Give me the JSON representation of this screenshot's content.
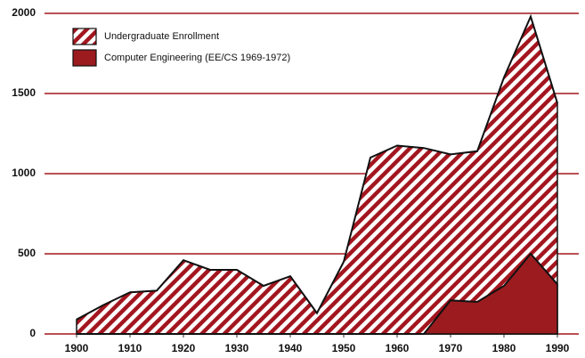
{
  "chart_data": {
    "type": "area",
    "x": [
      1900,
      1905,
      1910,
      1915,
      1920,
      1925,
      1930,
      1935,
      1940,
      1945,
      1950,
      1955,
      1960,
      1965,
      1970,
      1975,
      1980,
      1985,
      1990
    ],
    "series": [
      {
        "name": "Undergraduate Enrollment",
        "color": "#a3161f",
        "fill": "hatch",
        "values": [
          90,
          180,
          260,
          270,
          460,
          400,
          400,
          300,
          360,
          130,
          450,
          1100,
          1175,
          1160,
          1120,
          1140,
          1600,
          1980,
          1440
        ]
      },
      {
        "name": "Computer Engineering (EE/CS 1969-1972)",
        "color": "#9b1b1f",
        "fill": "solid",
        "values": [
          0,
          0,
          0,
          0,
          0,
          0,
          0,
          0,
          0,
          0,
          0,
          0,
          0,
          0,
          210,
          200,
          300,
          500,
          310
        ]
      }
    ],
    "xlim": [
      1894,
      1994
    ],
    "xticks": [
      1900,
      1910,
      1920,
      1930,
      1940,
      1950,
      1960,
      1970,
      1980,
      1990
    ],
    "ylim": [
      0,
      2000
    ],
    "yticks": [
      0,
      500,
      1000,
      1500,
      2000
    ],
    "grid": true,
    "grid_color": "#a3161f",
    "legend": "upper left"
  }
}
